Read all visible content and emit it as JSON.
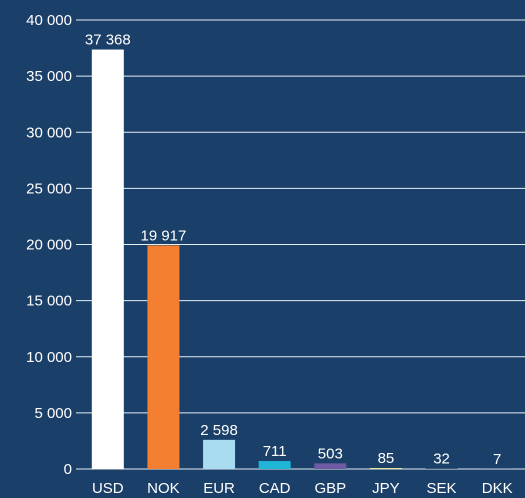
{
  "chart_data": {
    "type": "bar",
    "categories": [
      "USD",
      "NOK",
      "EUR",
      "CAD",
      "GBP",
      "JPY",
      "SEK",
      "DKK"
    ],
    "values": [
      37368,
      19917,
      2598,
      711,
      503,
      85,
      32,
      7
    ],
    "value_labels": [
      "37 368",
      "19 917",
      "2 598",
      "711",
      "503",
      "85",
      "32",
      "7"
    ],
    "bar_colors": [
      "#ffffff",
      "#f47f30",
      "#a9dbf1",
      "#1eb5d6",
      "#6e5ba3",
      "#f2ee92",
      "#1a3f68",
      "#1a3f68"
    ],
    "yticks": [
      0,
      5000,
      10000,
      15000,
      20000,
      25000,
      30000,
      35000,
      40000
    ],
    "ytick_labels": [
      "0",
      "5 000",
      "10 000",
      "15 000",
      "20 000",
      "25 000",
      "30 000",
      "35 000",
      "40 000"
    ],
    "ylim": [
      0,
      40000
    ],
    "grid": true,
    "title": "",
    "xlabel": "",
    "ylabel": ""
  }
}
